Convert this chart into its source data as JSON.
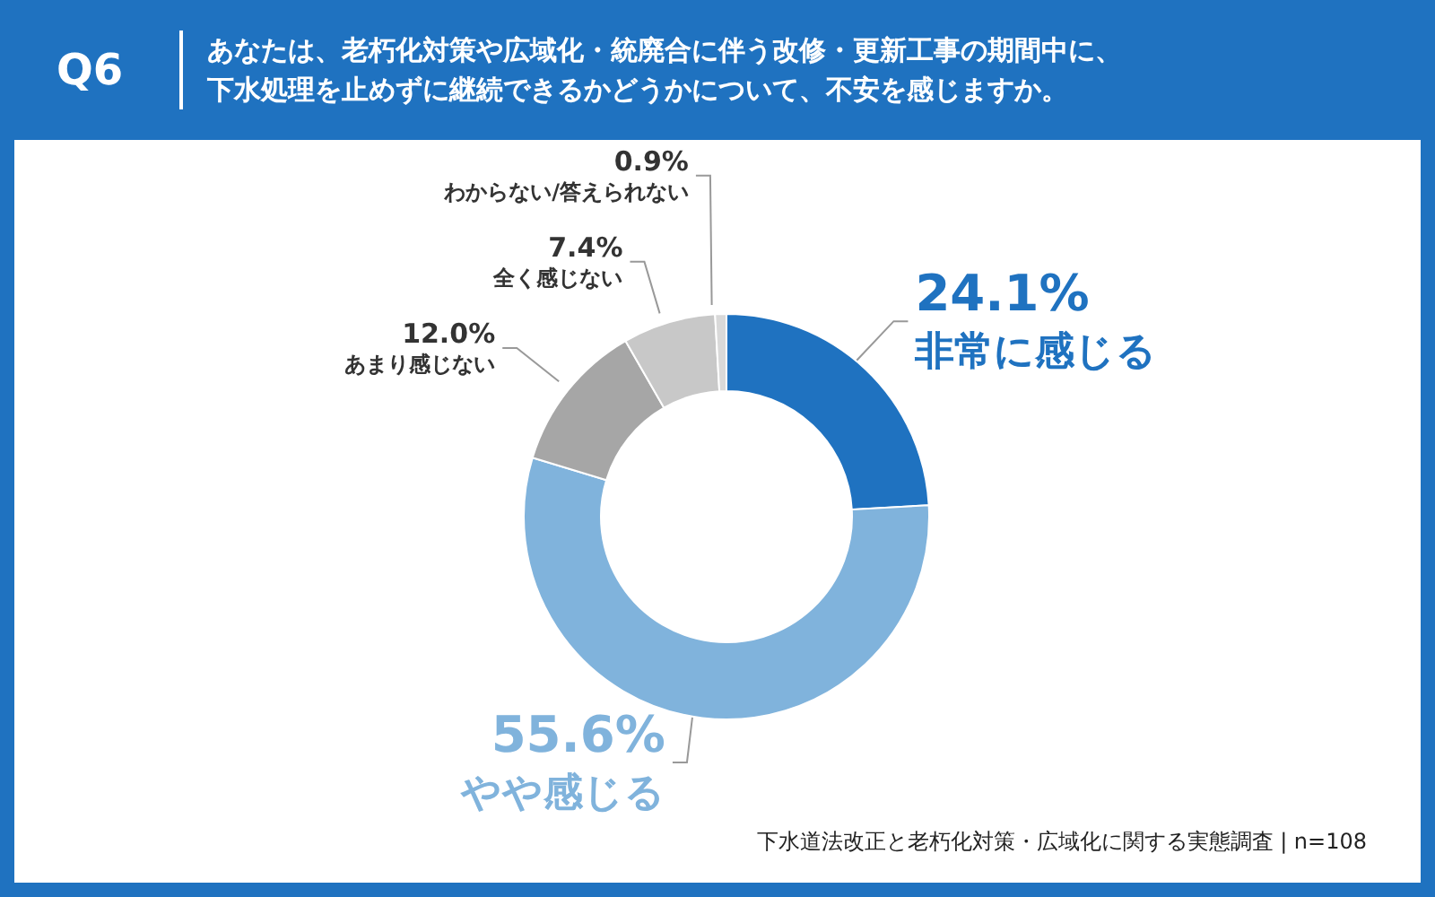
{
  "chart_data": {
    "type": "donut",
    "title": "Q6",
    "subtitle": "あなたは、老朽化対策や広域化・統廃合に伴う改修・更新工事の期間中に、下水処理を止めずに継続できるかどうかについて、不安を感じますか。",
    "categories": [
      "非常に感じる",
      "やや感じる",
      "あまり感じない",
      "全く感じない",
      "わからない/答えられない"
    ],
    "values": [
      24.1,
      55.6,
      12.0,
      7.4,
      0.9
    ],
    "value_labels": [
      "24.1%",
      "55.6%",
      "12.0%",
      "7.4%",
      "0.9%"
    ],
    "colors": [
      "#1f72c0",
      "#80b3dc",
      "#a6a6a6",
      "#c8c8c8",
      "#d9d9d9"
    ],
    "annotations": [
      "下水道法改正と老朽化対策・広域化に関する実態調査 | n=108"
    ]
  }
}
